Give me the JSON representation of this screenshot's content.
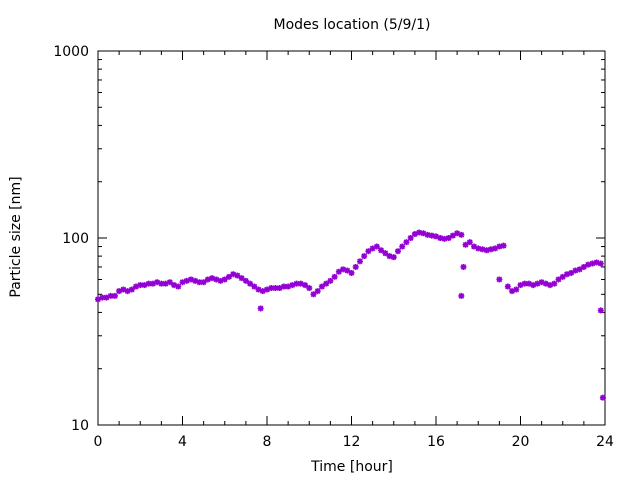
{
  "chart_data": {
    "type": "scatter",
    "title": "Modes location (5/9/1)",
    "xlabel": "Time [hour]",
    "ylabel": "Particle size [nm]",
    "xlim": [
      0,
      24
    ],
    "ylim": [
      10,
      1000
    ],
    "yscale": "log",
    "grid": false,
    "legend": "none",
    "x_ticks": [
      0,
      4,
      8,
      12,
      16,
      20,
      24
    ],
    "y_ticks": [
      10,
      100,
      1000
    ],
    "x_tick_labels": [
      "0",
      "4",
      "8",
      "12",
      "16",
      "20",
      "24"
    ],
    "y_tick_labels": [
      "10",
      "100",
      "1000"
    ],
    "marker_color": "#9400D3",
    "series": [
      {
        "x": [
          0.0,
          0.2,
          0.4,
          0.6,
          0.8,
          1.0,
          1.2,
          1.4,
          1.6,
          1.8,
          2.0,
          2.2,
          2.4,
          2.6,
          2.8,
          3.0,
          3.2,
          3.4,
          3.6,
          3.8,
          4.0,
          4.2,
          4.4,
          4.6,
          4.8,
          5.0,
          5.2,
          5.4,
          5.6,
          5.8,
          6.0,
          6.2,
          6.4,
          6.6,
          6.8,
          7.0,
          7.2,
          7.4,
          7.6,
          7.8,
          8.0,
          8.2,
          8.4,
          8.6,
          8.8,
          9.0,
          9.2,
          9.4,
          9.6,
          9.8,
          10.0,
          10.2,
          10.4,
          10.6,
          10.8,
          11.0,
          11.2,
          11.4,
          11.6,
          11.8,
          12.0,
          12.2,
          12.4,
          12.6,
          12.8,
          13.0,
          13.2,
          13.4,
          13.6,
          13.8,
          14.0,
          14.2,
          14.4,
          14.6,
          14.8,
          15.0,
          15.2,
          15.4,
          15.6,
          15.8,
          16.0,
          16.2,
          16.4,
          16.6,
          16.8,
          17.0,
          17.2,
          17.4,
          17.6,
          17.8,
          18.0,
          18.2,
          18.4,
          18.6,
          18.8,
          19.0,
          19.2,
          19.4,
          19.6,
          19.8,
          20.0,
          20.2,
          20.4,
          20.6,
          20.8,
          21.0,
          21.2,
          21.4,
          21.6,
          21.8,
          22.0,
          22.2,
          22.4,
          22.6,
          22.8,
          23.0,
          23.2,
          23.4,
          23.6,
          23.8,
          7.7,
          17.2,
          17.3,
          19.0,
          23.8,
          23.9
        ],
        "y": [
          47,
          48,
          48,
          49,
          49,
          52,
          53,
          52,
          53,
          55,
          56,
          56,
          57,
          57,
          58,
          57,
          57,
          58,
          56,
          55,
          58,
          59,
          60,
          59,
          58,
          58,
          60,
          61,
          60,
          59,
          60,
          62,
          64,
          63,
          61,
          59,
          57,
          55,
          53,
          52,
          53,
          54,
          54,
          54,
          55,
          55,
          56,
          57,
          57,
          56,
          54,
          50,
          52,
          55,
          57,
          59,
          62,
          66,
          68,
          67,
          65,
          70,
          75,
          80,
          85,
          88,
          90,
          86,
          83,
          80,
          79,
          85,
          90,
          95,
          100,
          105,
          107,
          106,
          104,
          103,
          102,
          100,
          99,
          100,
          103,
          106,
          104,
          92,
          95,
          90,
          88,
          87,
          86,
          87,
          88,
          90,
          91,
          55,
          52,
          53,
          56,
          57,
          57,
          56,
          57,
          58,
          57,
          56,
          57,
          60,
          62,
          64,
          65,
          67,
          68,
          70,
          72,
          73,
          74,
          73,
          42,
          49,
          70,
          60,
          41,
          14
        ]
      }
    ]
  }
}
